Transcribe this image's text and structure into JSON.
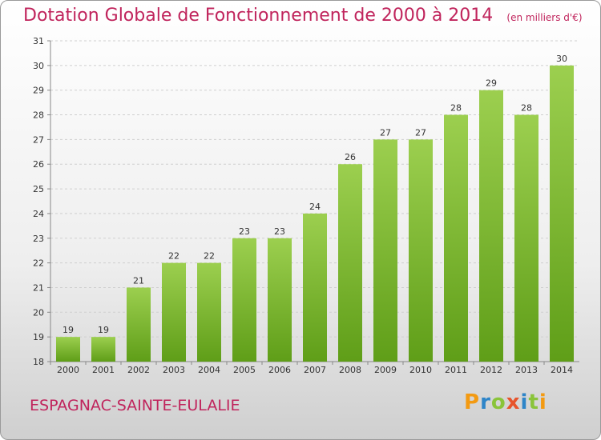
{
  "title": "Dotation Globale de Fonctionnement de 2000 à 2014",
  "unit": "(en milliers d'€)",
  "place_name": "ESPAGNAC-SAINTE-EULALIE",
  "logo": "Proxiti",
  "colors": {
    "bar_top": "#9ccf4f",
    "bar_bottom": "#5f9e18",
    "accent": "#c0245c"
  },
  "chart_data": {
    "type": "bar",
    "categories": [
      "2000",
      "2001",
      "2002",
      "2003",
      "2004",
      "2005",
      "2006",
      "2007",
      "2008",
      "2009",
      "2010",
      "2011",
      "2012",
      "2013",
      "2014"
    ],
    "values": [
      19,
      19,
      21,
      22,
      22,
      23,
      23,
      24,
      26,
      27,
      27,
      28,
      29,
      28,
      30
    ],
    "data_labels": [
      "19",
      "19",
      "21",
      "22",
      "22",
      "23",
      "23",
      "24",
      "26",
      "27",
      "27",
      "28",
      "29",
      "28",
      "30"
    ],
    "y_ticks": [
      18,
      19,
      20,
      21,
      22,
      23,
      24,
      25,
      26,
      27,
      28,
      29,
      30,
      31
    ],
    "ylim": [
      18,
      31
    ],
    "grid": true,
    "legend": "none"
  }
}
